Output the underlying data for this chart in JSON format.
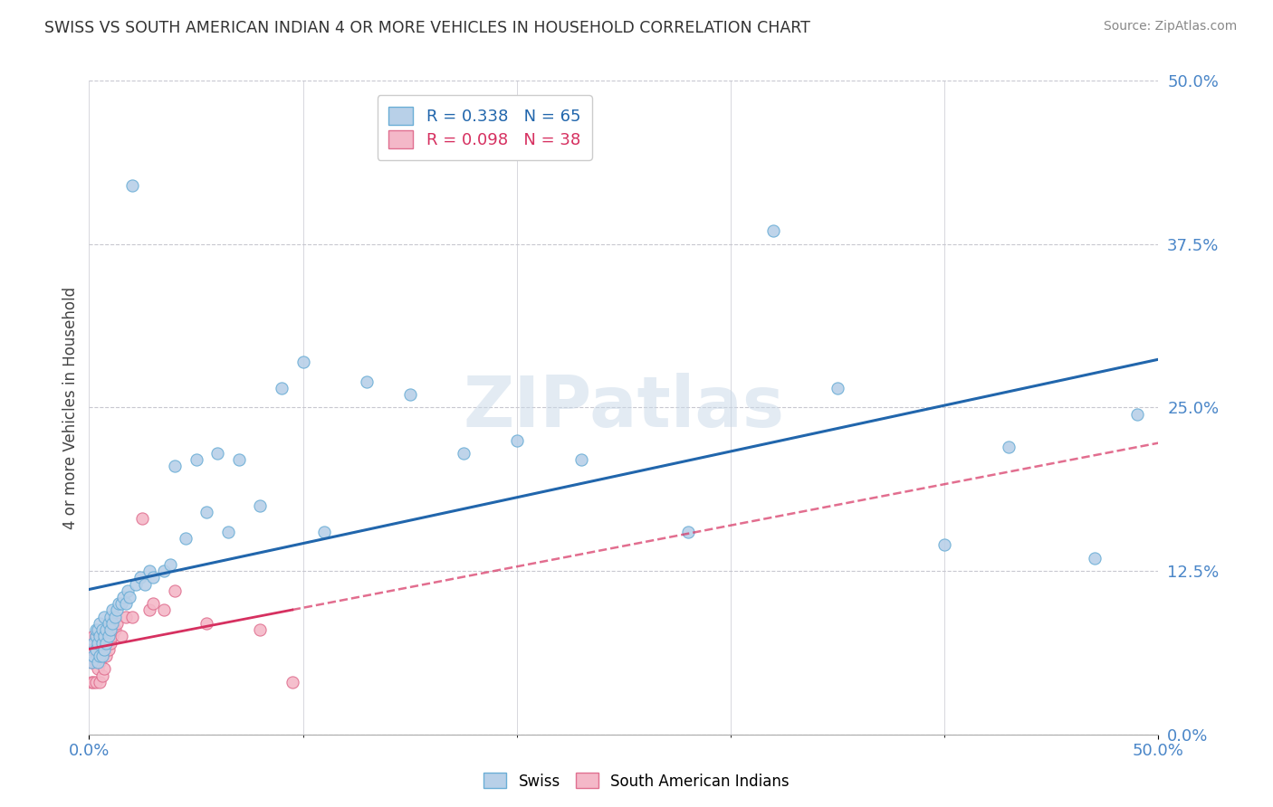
{
  "title": "SWISS VS SOUTH AMERICAN INDIAN 4 OR MORE VEHICLES IN HOUSEHOLD CORRELATION CHART",
  "source": "Source: ZipAtlas.com",
  "ylabel": "4 or more Vehicles in Household",
  "xlim": [
    0.0,
    0.5
  ],
  "ylim": [
    0.0,
    0.5
  ],
  "ytick_vals": [
    0.0,
    0.125,
    0.25,
    0.375,
    0.5
  ],
  "ytick_labels": [
    "0.0%",
    "12.5%",
    "25.0%",
    "37.5%",
    "50.0%"
  ],
  "xtick_vals": [
    0.0,
    0.5
  ],
  "xtick_labels": [
    "0.0%",
    "50.0%"
  ],
  "swiss_R": 0.338,
  "swiss_N": 65,
  "sa_R": 0.098,
  "sa_N": 38,
  "swiss_color": "#b8d0e8",
  "swiss_edge_color": "#6baed6",
  "swiss_line_color": "#2166ac",
  "sa_color": "#f4b8c8",
  "sa_edge_color": "#e07090",
  "sa_line_color": "#d63060",
  "swiss_x": [
    0.001,
    0.002,
    0.002,
    0.003,
    0.003,
    0.003,
    0.004,
    0.004,
    0.004,
    0.005,
    0.005,
    0.005,
    0.006,
    0.006,
    0.006,
    0.007,
    0.007,
    0.007,
    0.008,
    0.008,
    0.009,
    0.009,
    0.01,
    0.01,
    0.011,
    0.011,
    0.012,
    0.013,
    0.014,
    0.015,
    0.016,
    0.017,
    0.018,
    0.019,
    0.02,
    0.022,
    0.024,
    0.026,
    0.028,
    0.03,
    0.035,
    0.038,
    0.04,
    0.045,
    0.05,
    0.055,
    0.06,
    0.065,
    0.07,
    0.08,
    0.09,
    0.1,
    0.11,
    0.13,
    0.15,
    0.175,
    0.2,
    0.23,
    0.28,
    0.32,
    0.35,
    0.4,
    0.43,
    0.47,
    0.49
  ],
  "swiss_y": [
    0.055,
    0.06,
    0.07,
    0.065,
    0.075,
    0.08,
    0.055,
    0.07,
    0.08,
    0.06,
    0.075,
    0.085,
    0.06,
    0.07,
    0.08,
    0.065,
    0.075,
    0.09,
    0.07,
    0.08,
    0.075,
    0.085,
    0.08,
    0.09,
    0.085,
    0.095,
    0.09,
    0.095,
    0.1,
    0.1,
    0.105,
    0.1,
    0.11,
    0.105,
    0.42,
    0.115,
    0.12,
    0.115,
    0.125,
    0.12,
    0.125,
    0.13,
    0.205,
    0.15,
    0.21,
    0.17,
    0.215,
    0.155,
    0.21,
    0.175,
    0.265,
    0.285,
    0.155,
    0.27,
    0.26,
    0.215,
    0.225,
    0.21,
    0.155,
    0.385,
    0.265,
    0.145,
    0.22,
    0.135,
    0.245
  ],
  "sa_x": [
    0.001,
    0.001,
    0.001,
    0.002,
    0.002,
    0.002,
    0.002,
    0.003,
    0.003,
    0.003,
    0.003,
    0.004,
    0.004,
    0.004,
    0.005,
    0.005,
    0.005,
    0.006,
    0.006,
    0.007,
    0.007,
    0.008,
    0.009,
    0.01,
    0.011,
    0.012,
    0.013,
    0.015,
    0.017,
    0.02,
    0.025,
    0.028,
    0.03,
    0.035,
    0.04,
    0.055,
    0.08,
    0.095
  ],
  "sa_y": [
    0.04,
    0.055,
    0.065,
    0.04,
    0.055,
    0.065,
    0.075,
    0.04,
    0.055,
    0.065,
    0.075,
    0.05,
    0.06,
    0.07,
    0.04,
    0.055,
    0.075,
    0.045,
    0.06,
    0.05,
    0.07,
    0.06,
    0.065,
    0.07,
    0.075,
    0.08,
    0.085,
    0.075,
    0.09,
    0.09,
    0.165,
    0.095,
    0.1,
    0.095,
    0.11,
    0.085,
    0.08,
    0.04
  ]
}
